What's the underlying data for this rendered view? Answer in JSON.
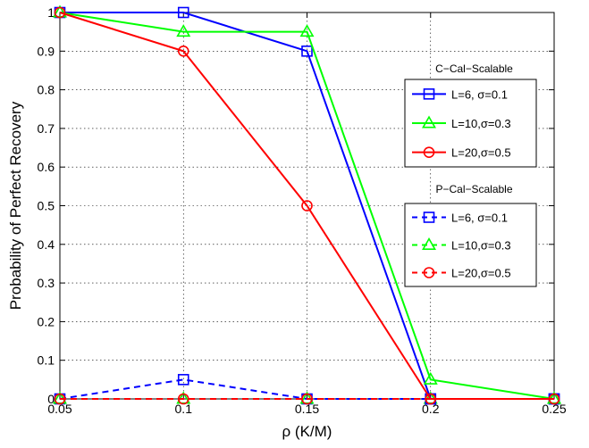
{
  "chart_data": {
    "type": "line",
    "xlabel": "ρ (K/M)",
    "ylabel": "Probability of Perfect Recovery",
    "xlim": [
      0.05,
      0.25
    ],
    "ylim": [
      0,
      1
    ],
    "x": [
      0.05,
      0.1,
      0.15,
      0.2,
      0.25
    ],
    "x_ticks": [
      "0.05",
      "0.1",
      "0.15",
      "0.2",
      "0.25"
    ],
    "y_ticks": [
      "0",
      "0.1",
      "0.2",
      "0.3",
      "0.4",
      "0.5",
      "0.6",
      "0.7",
      "0.8",
      "0.9",
      "1"
    ],
    "grid": true,
    "legend_groups": [
      {
        "title": "C−Cal−Scalable",
        "placement": "right, upper"
      },
      {
        "title": "P−Cal−Scalable",
        "placement": "right, middle"
      }
    ],
    "series": [
      {
        "name": "L=6, σ=0.1",
        "group": 0,
        "color": "#0000ff",
        "marker": "square",
        "line": "solid",
        "values": [
          1,
          1,
          0.9,
          0,
          0
        ]
      },
      {
        "name": "L=10,σ=0.3",
        "group": 0,
        "color": "#00ff00",
        "marker": "triangle",
        "line": "solid",
        "values": [
          1,
          0.95,
          0.95,
          0.05,
          0
        ]
      },
      {
        "name": "L=20,σ=0.5",
        "group": 0,
        "color": "#ff0000",
        "marker": "circle",
        "line": "solid",
        "values": [
          1,
          0.9,
          0.5,
          0,
          0
        ]
      },
      {
        "name": "L=6, σ=0.1",
        "group": 1,
        "color": "#0000ff",
        "marker": "square",
        "line": "dashed",
        "values": [
          0,
          0.05,
          0,
          0,
          0
        ]
      },
      {
        "name": "L=10,σ=0.3",
        "group": 1,
        "color": "#00ff00",
        "marker": "triangle",
        "line": "dashed",
        "values": [
          0,
          0,
          0,
          0,
          0
        ]
      },
      {
        "name": "L=20,σ=0.5",
        "group": 1,
        "color": "#ff0000",
        "marker": "circle",
        "line": "dashed",
        "values": [
          0,
          0,
          0,
          0,
          0
        ]
      }
    ]
  }
}
